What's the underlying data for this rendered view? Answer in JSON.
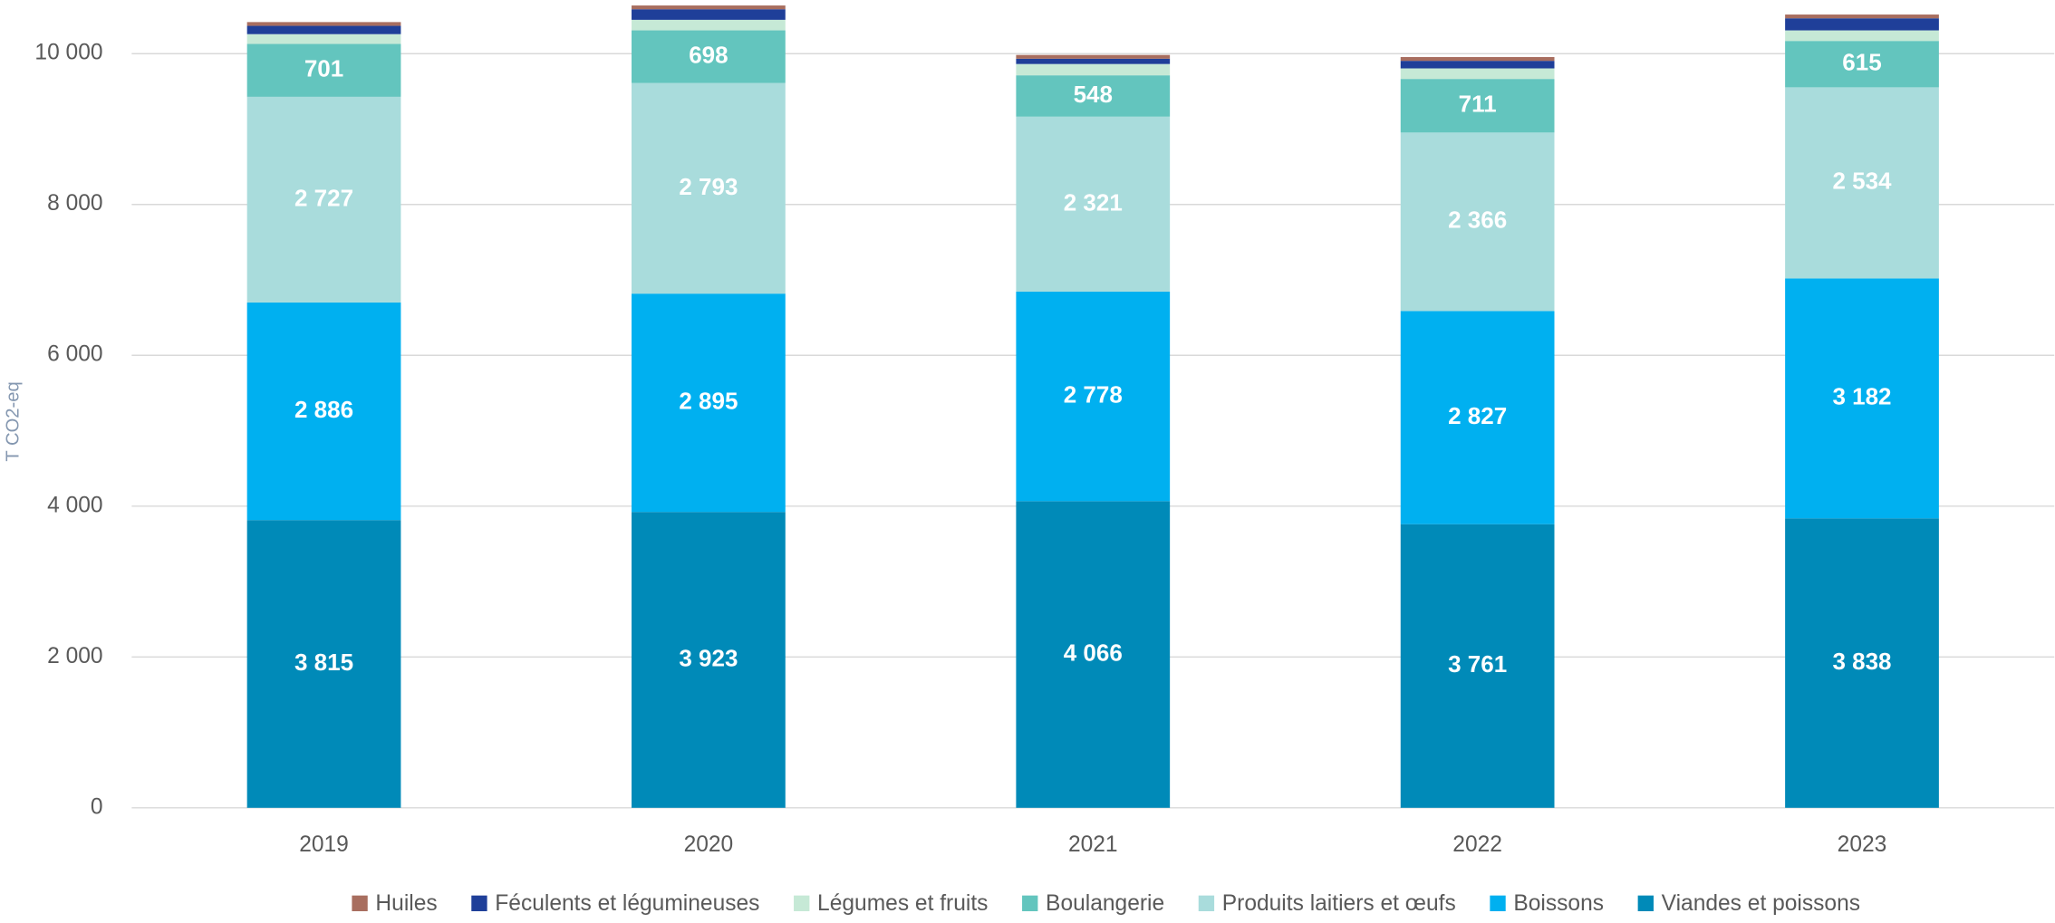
{
  "chart_data": {
    "type": "bar",
    "stacked": true,
    "y_label": "T CO2-eq",
    "categories": [
      "2019",
      "2020",
      "2021",
      "2022",
      "2023"
    ],
    "series": [
      {
        "name": "Viandes et poissons",
        "color": "#008ab8",
        "values": [
          3815,
          3923,
          4066,
          3761,
          3838
        ],
        "value_labels": [
          "3 815",
          "3 923",
          "4 066",
          "3 761",
          "3 838"
        ]
      },
      {
        "name": "Boissons",
        "color": "#00b0f0",
        "values": [
          2886,
          2895,
          2778,
          2827,
          3182
        ],
        "value_labels": [
          "2 886",
          "2 895",
          "2 778",
          "2 827",
          "3 182"
        ]
      },
      {
        "name": "Produits laitiers et œufs",
        "color": "#a9dcdc",
        "values": [
          2727,
          2793,
          2321,
          2366,
          2534
        ],
        "value_labels": [
          "2 727",
          "2 793",
          "2 321",
          "2 366",
          "2 534"
        ]
      },
      {
        "name": "Boulangerie",
        "color": "#63c5be",
        "values": [
          701,
          698,
          548,
          711,
          615
        ],
        "value_labels": [
          "701",
          "698",
          "548",
          "711",
          "615"
        ]
      },
      {
        "name": "Légumes et fruits",
        "color": "#c6e9d6",
        "values": [
          130,
          140,
          150,
          140,
          140
        ]
      },
      {
        "name": "Féculents et légumineuses",
        "color": "#1f3f99",
        "values": [
          110,
          140,
          70,
          100,
          160
        ]
      },
      {
        "name": "Huiles",
        "color": "#a86e5f",
        "values": [
          50,
          50,
          50,
          50,
          50
        ]
      }
    ],
    "ylim": [
      0,
      10700
    ],
    "yticks": [
      0,
      {
        "value": 2000,
        "label": "2 000"
      },
      {
        "value": 4000,
        "label": "4 000"
      },
      {
        "value": 6000,
        "label": "6 000"
      },
      {
        "value": 8000,
        "label": "8 000"
      },
      {
        "value": 10000,
        "label": "10 000"
      }
    ],
    "grid": true,
    "legend": "bottom"
  }
}
